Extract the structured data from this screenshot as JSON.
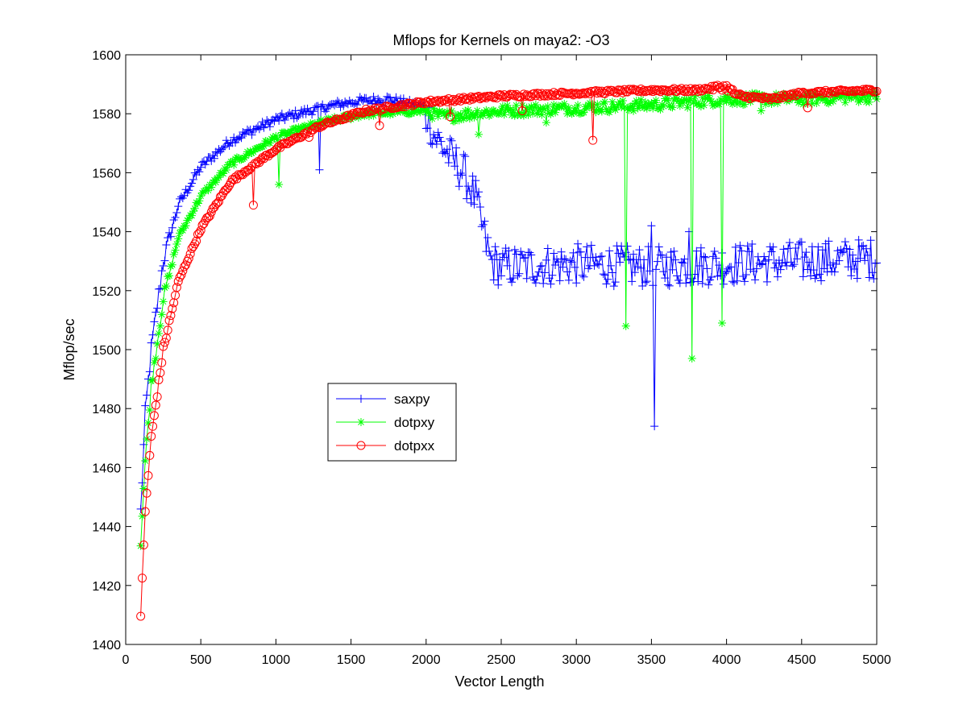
{
  "chart_data": {
    "type": "line",
    "title": "Mflops for Kernels on maya2: -O3",
    "xlabel": "Vector Length",
    "ylabel": "Mflop/sec",
    "xlim": [
      0,
      5000
    ],
    "ylim": [
      1400,
      1600
    ],
    "xticks": [
      "0",
      "500",
      "1000",
      "1500",
      "2000",
      "2500",
      "3000",
      "3500",
      "4000",
      "4500",
      "5000"
    ],
    "yticks": [
      "1400",
      "1420",
      "1440",
      "1460",
      "1480",
      "1500",
      "1520",
      "1540",
      "1560",
      "1580",
      "1600"
    ],
    "grid": false,
    "legend_position": "center-left",
    "series": [
      {
        "name": "saxpy",
        "color": "#0000ff",
        "marker": "plus",
        "trend": [
          [
            100,
            1445
          ],
          [
            130,
            1478
          ],
          [
            170,
            1500
          ],
          [
            250,
            1530
          ],
          [
            350,
            1549
          ],
          [
            500,
            1562
          ],
          [
            700,
            1571
          ],
          [
            1000,
            1578
          ],
          [
            1300,
            1582
          ],
          [
            1500,
            1584
          ],
          [
            1740,
            1585
          ],
          [
            2000,
            1582
          ],
          [
            2050,
            1573
          ],
          [
            2150,
            1566
          ],
          [
            2250,
            1560
          ],
          [
            2330,
            1551
          ],
          [
            2380,
            1540
          ],
          [
            2430,
            1530
          ],
          [
            2500,
            1528
          ],
          [
            3000,
            1529
          ],
          [
            3500,
            1528
          ],
          [
            4000,
            1529
          ],
          [
            4500,
            1530
          ],
          [
            5000,
            1531
          ]
        ],
        "spikes": [
          [
            1290,
            1561
          ],
          [
            2000,
            1575
          ],
          [
            3520,
            1474
          ],
          [
            3500,
            1542
          ],
          [
            3750,
            1540
          ]
        ]
      },
      {
        "name": "dotpxy",
        "color": "#00ff00",
        "marker": "star",
        "trend": [
          [
            100,
            1435
          ],
          [
            130,
            1462
          ],
          [
            170,
            1488
          ],
          [
            250,
            1517
          ],
          [
            350,
            1538
          ],
          [
            500,
            1552
          ],
          [
            700,
            1563
          ],
          [
            1000,
            1572
          ],
          [
            1300,
            1577
          ],
          [
            1600,
            1580
          ],
          [
            2000,
            1581
          ],
          [
            2100,
            1579
          ],
          [
            2500,
            1581
          ],
          [
            3000,
            1582
          ],
          [
            3500,
            1583
          ],
          [
            4000,
            1585
          ],
          [
            4500,
            1585
          ],
          [
            5000,
            1586
          ]
        ],
        "spikes": [
          [
            1020,
            1556
          ],
          [
            3330,
            1508
          ],
          [
            3770,
            1497
          ],
          [
            3970,
            1509
          ],
          [
            2350,
            1573
          ],
          [
            2800,
            1577
          ],
          [
            4230,
            1581
          ]
        ]
      },
      {
        "name": "dotpxx",
        "color": "#ff0000",
        "marker": "circle",
        "trend": [
          [
            100,
            1410
          ],
          [
            130,
            1445
          ],
          [
            170,
            1470
          ],
          [
            250,
            1500
          ],
          [
            350,
            1523
          ],
          [
            500,
            1541
          ],
          [
            700,
            1557
          ],
          [
            1000,
            1568
          ],
          [
            1300,
            1576
          ],
          [
            1600,
            1581
          ],
          [
            2000,
            1584
          ],
          [
            2500,
            1586
          ],
          [
            3000,
            1587
          ],
          [
            3500,
            1588
          ],
          [
            3800,
            1588
          ],
          [
            3950,
            1589
          ],
          [
            4000,
            1589
          ],
          [
            4080,
            1586
          ],
          [
            4300,
            1585
          ],
          [
            4500,
            1587
          ],
          [
            5000,
            1588
          ]
        ],
        "spikes": [
          [
            850,
            1549
          ],
          [
            1220,
            1572
          ],
          [
            3110,
            1571
          ],
          [
            4540,
            1582
          ],
          [
            1690,
            1576
          ],
          [
            2160,
            1579
          ],
          [
            2640,
            1581
          ]
        ]
      }
    ]
  }
}
